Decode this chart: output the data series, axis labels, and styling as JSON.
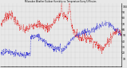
{
  "title": "Milwaukee Weather Outdoor Humidity vs. Temperature Every 5 Minutes",
  "bg_color": "#e8e8e8",
  "plot_bg": "#e8e8e8",
  "red_color": "#dd0000",
  "blue_color": "#0000cc",
  "ylim": [
    -5,
    105
  ],
  "ytick_vals": [
    10,
    20,
    30,
    40,
    50,
    60,
    70,
    80,
    90,
    100
  ],
  "grid_color": "#aaaaaa",
  "figsize": [
    1.6,
    0.87
  ],
  "dpi": 100,
  "n_points": 500,
  "seed": 7
}
